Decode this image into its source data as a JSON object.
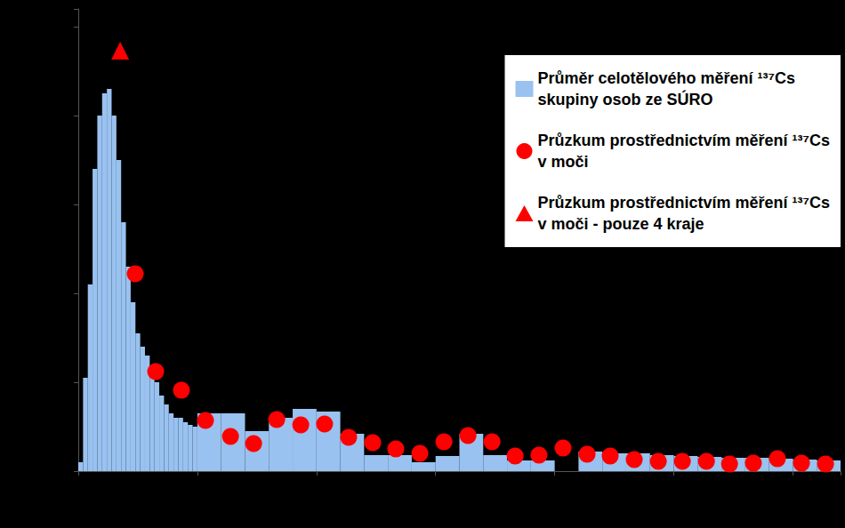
{
  "chart_data": {
    "type": "histogram",
    "xlim": [
      1985,
      2017
    ],
    "xticks": [
      1985,
      1990,
      1995,
      2000,
      2005,
      2010,
      2015
    ],
    "ylim": [
      0,
      520
    ],
    "yticks": [
      0,
      100,
      200,
      300,
      400,
      500
    ],
    "tick_labels": false,
    "grid": false,
    "legend": "upper right",
    "series": [
      {
        "name": "Průměr celotělového měření ¹³⁷Cs\nskupiny osob ze SÚRO",
        "type": "histogram",
        "color": "#99c2f0",
        "bins": [
          1985.0,
          1985.2,
          1985.4,
          1985.6,
          1985.8,
          1986.0,
          1986.2,
          1986.4,
          1986.6,
          1986.8,
          1987.0,
          1987.2,
          1987.4,
          1987.6,
          1987.8,
          1988.0,
          1988.2,
          1988.4,
          1988.6,
          1988.8,
          1989.0,
          1989.2,
          1989.4,
          1989.6,
          1989.8,
          1990.0,
          1991,
          1992,
          1993,
          1994,
          1995,
          1996,
          1997,
          1998,
          1999,
          2000,
          2001,
          2002,
          2003,
          2004,
          2005,
          2006,
          2007,
          2008,
          2009,
          2010,
          2011,
          2012,
          2013,
          2014,
          2015,
          2016,
          2017
        ],
        "values": [
          10,
          105,
          210,
          340,
          400,
          425,
          430,
          400,
          350,
          280,
          230,
          190,
          155,
          140,
          130,
          115,
          100,
          85,
          75,
          65,
          60,
          60,
          55,
          52,
          50,
          65,
          65,
          45,
          60,
          70,
          67,
          42,
          18,
          18,
          10,
          17,
          42,
          18,
          12,
          12,
          0,
          22,
          20,
          20,
          18,
          17,
          16,
          15,
          15,
          14,
          13,
          12
        ]
      },
      {
        "name": "Průzkum prostřednictvím měření ¹³⁷Cs\nv moči",
        "type": "scatter",
        "marker": "circle",
        "color": "#ff0000",
        "x": [
          1987.39,
          1988.25,
          1989.33,
          1990.34,
          1991.39,
          1992.36,
          1993.33,
          1994.34,
          1995.34,
          1996.35,
          1997.36,
          1998.33,
          1999.34,
          2000.35,
          2001.36,
          2002.37,
          2003.34,
          2004.34,
          2005.35,
          2006.36,
          2007.33,
          2008.34,
          2009.35,
          2010.36,
          2011.37,
          2012.34,
          2013.34,
          2014.35,
          2015.36,
          2016.37
        ],
        "values": [
          222,
          112,
          91,
          57,
          39,
          31,
          58,
          52,
          53,
          38,
          32,
          25,
          20,
          33,
          40,
          33,
          17,
          18,
          26,
          19,
          17,
          13,
          11,
          11,
          11,
          8,
          9,
          14,
          9,
          8
        ]
      },
      {
        "name": "Průzkum prostřednictvím měření ¹³⁷Cs\nv moči - pouze 4 kraje",
        "type": "scatter",
        "marker": "triangle",
        "color": "#ff0000",
        "x": [
          1986.76
        ],
        "values": [
          473
        ]
      }
    ]
  }
}
